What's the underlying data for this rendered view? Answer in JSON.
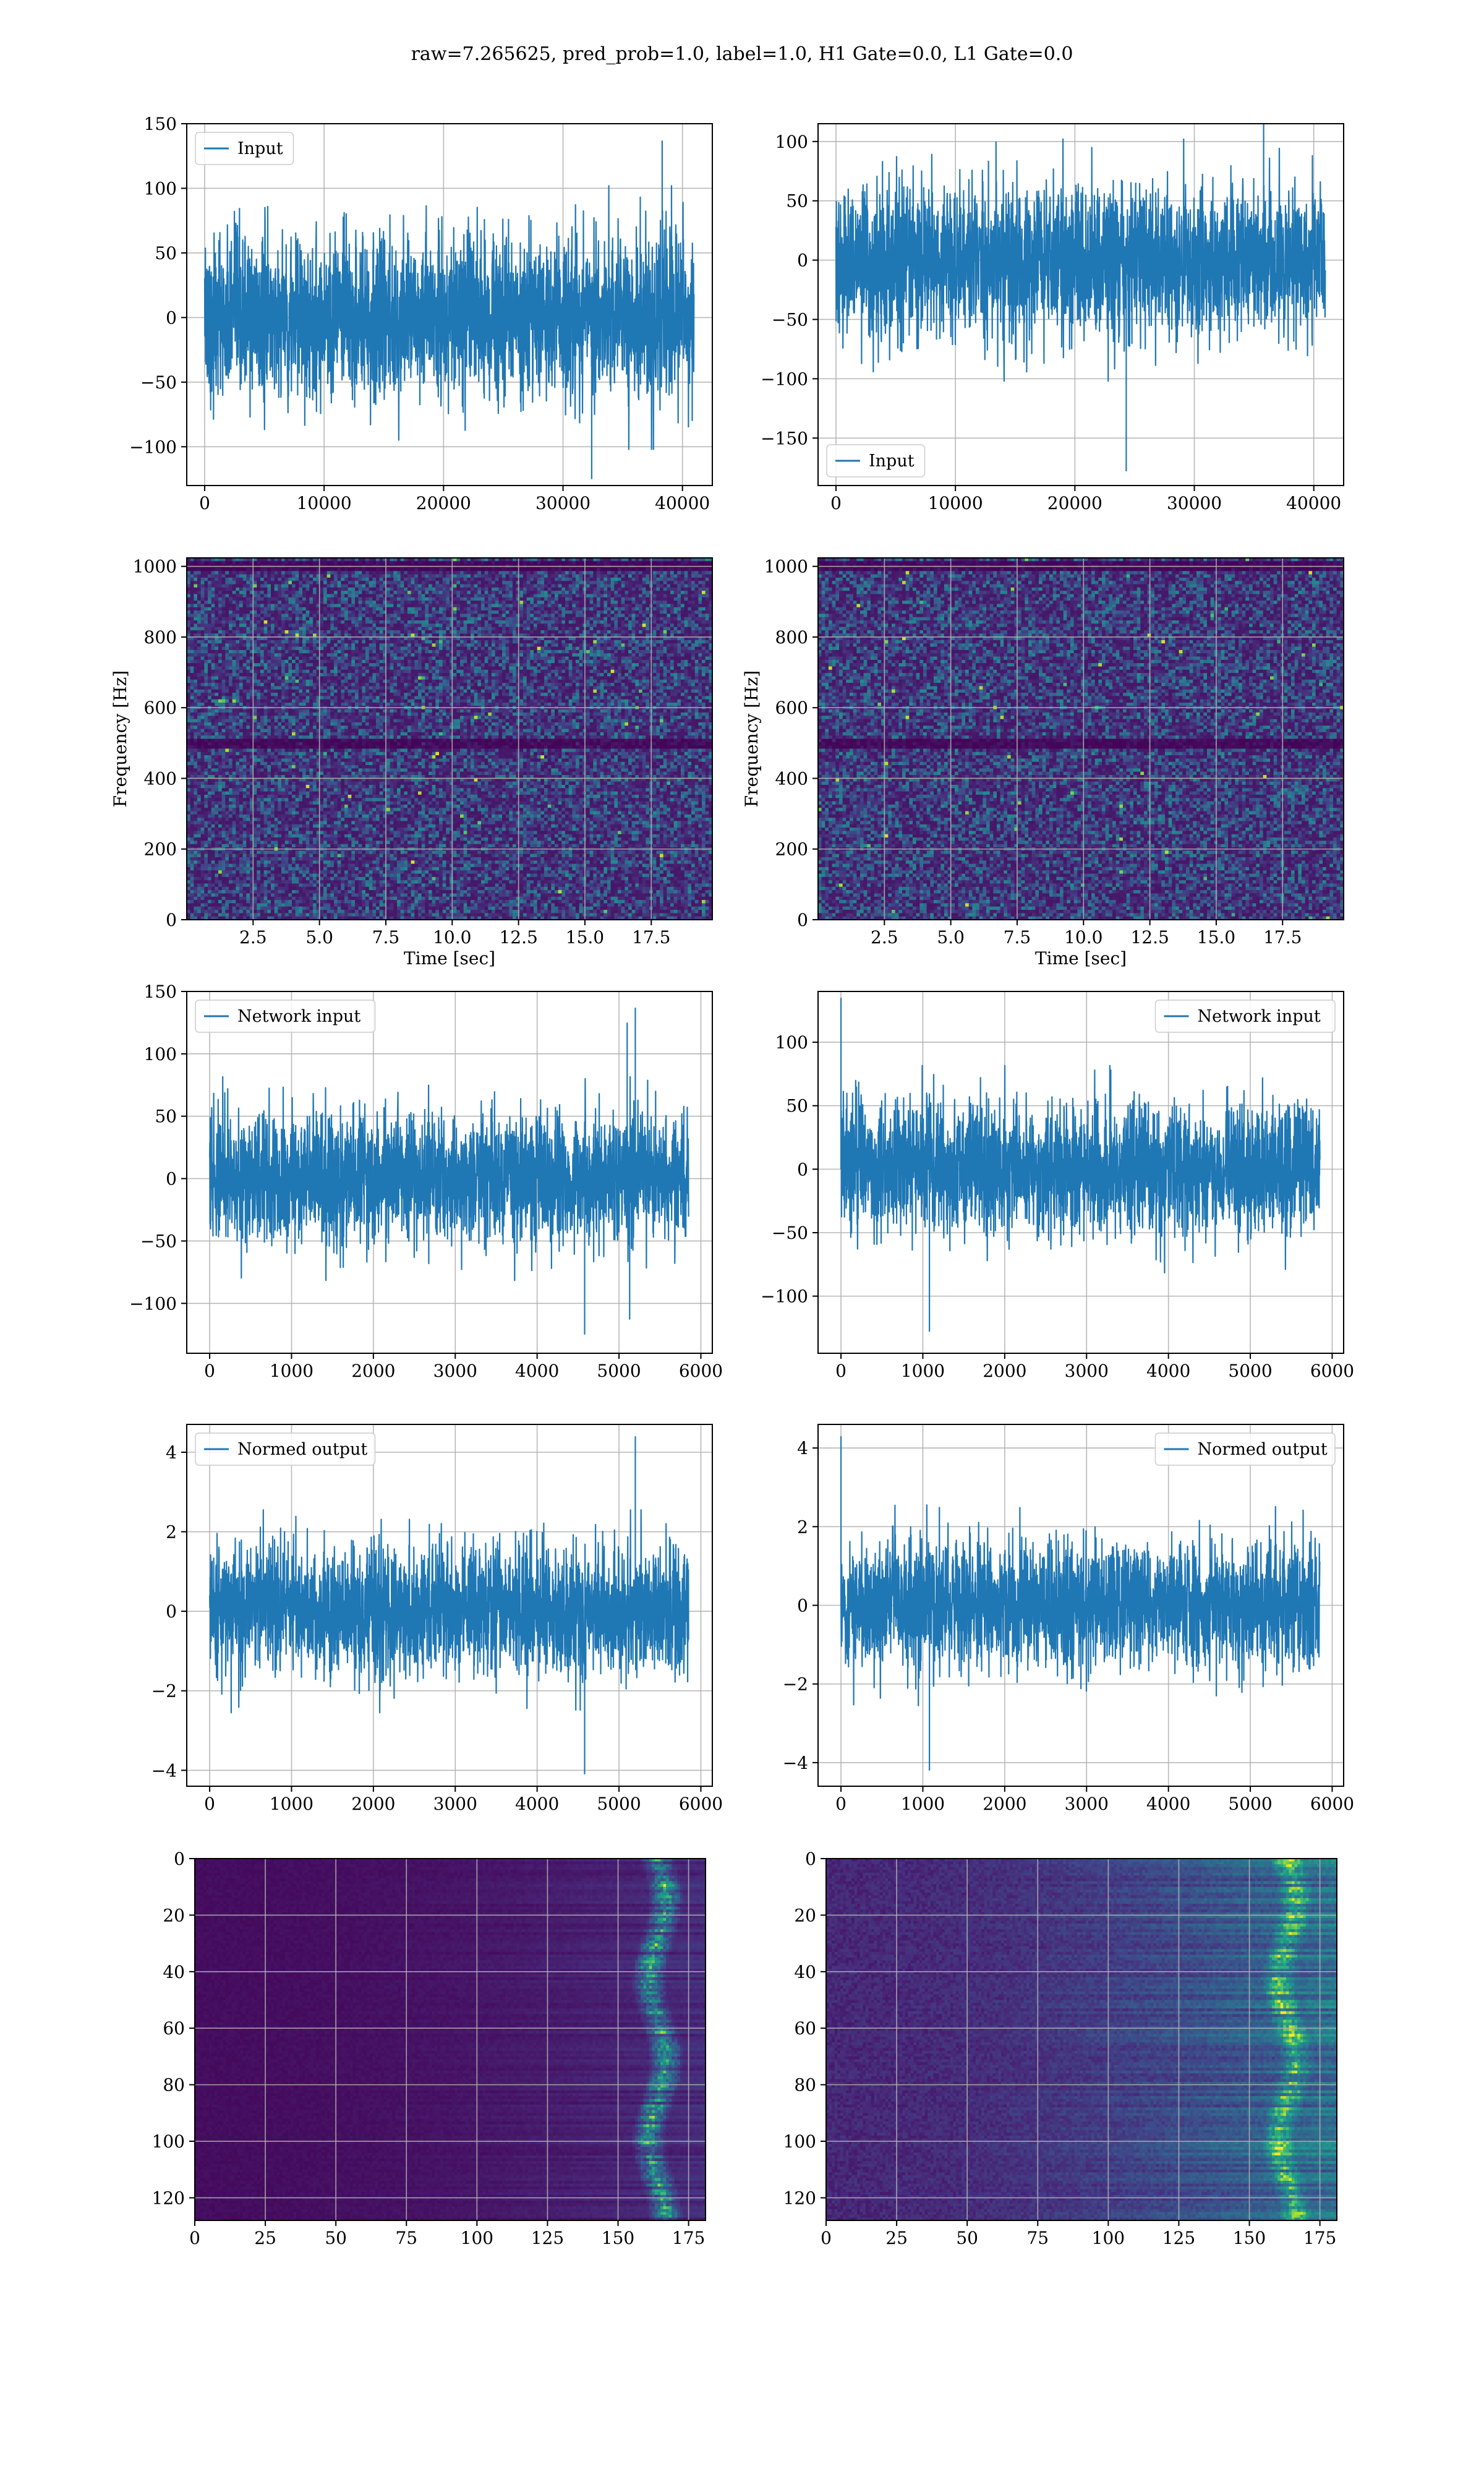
{
  "figure": {
    "suptitle": "raw=7.265625, pred_prob=1.0, label=1.0, H1 Gate=0.0, L1 Gate=0.0",
    "line_color": "#1f77b4",
    "grid_color": "#b0b0b0"
  },
  "chart_data": [
    {
      "id": "input-h1",
      "type": "line",
      "series": [
        {
          "name": "Input",
          "noise_std": 30,
          "x_max": 40960
        }
      ],
      "xlim": [
        -1500,
        42500
      ],
      "ylim": [
        -130,
        150
      ],
      "xticks": [
        0,
        10000,
        20000,
        30000,
        40000
      ],
      "yticks": [
        -100,
        -50,
        0,
        50,
        100,
        150
      ],
      "legend": "upper left",
      "grid": true,
      "annotations": [
        {
          "x": 32400,
          "y": -125
        },
        {
          "x": 38300,
          "y": 137
        }
      ]
    },
    {
      "id": "input-l1",
      "type": "line",
      "series": [
        {
          "name": "Input",
          "noise_std": 30,
          "x_max": 40960
        }
      ],
      "xlim": [
        -1500,
        42500
      ],
      "ylim": [
        -190,
        115
      ],
      "xticks": [
        0,
        10000,
        20000,
        30000,
        40000
      ],
      "yticks": [
        -150,
        -100,
        -50,
        0,
        50,
        100
      ],
      "legend": "lower left",
      "grid": true,
      "annotations": [
        {
          "x": 24300,
          "y": -178
        },
        {
          "x": 35800,
          "y": 125
        }
      ]
    },
    {
      "id": "spectrogram-h1",
      "type": "heatmap",
      "xlabel": "Time [sec]",
      "ylabel": "Frequency [Hz]",
      "xlim": [
        0,
        19.8
      ],
      "ylim": [
        0,
        1024
      ],
      "xticks": [
        2.5,
        5.0,
        7.5,
        10.0,
        12.5,
        15.0,
        17.5
      ],
      "yticks": [
        0,
        200,
        400,
        600,
        800,
        1000
      ],
      "colormap": "viridis",
      "grid": true,
      "dark_bands_hz": [
        500,
        1000
      ]
    },
    {
      "id": "spectrogram-l1",
      "type": "heatmap",
      "xlabel": "Time [sec]",
      "ylabel": "Frequency [Hz]",
      "xlim": [
        0,
        19.8
      ],
      "ylim": [
        0,
        1024
      ],
      "xticks": [
        2.5,
        5.0,
        7.5,
        10.0,
        12.5,
        15.0,
        17.5
      ],
      "yticks": [
        0,
        200,
        400,
        600,
        800,
        1000
      ],
      "colormap": "viridis",
      "grid": true,
      "dark_bands_hz": [
        500,
        1000
      ]
    },
    {
      "id": "network-input-h1",
      "type": "line",
      "series": [
        {
          "name": "Network input",
          "noise_std": 24,
          "x_max": 5850
        }
      ],
      "xlim": [
        -280,
        6140
      ],
      "ylim": [
        -140,
        150
      ],
      "xticks": [
        0,
        1000,
        2000,
        3000,
        4000,
        5000,
        6000
      ],
      "yticks": [
        -100,
        -50,
        0,
        50,
        100,
        150
      ],
      "legend": "upper left",
      "grid": true,
      "annotations": [
        {
          "x": 5200,
          "y": 137
        },
        {
          "x": 5100,
          "y": 125
        },
        {
          "x": 4580,
          "y": -125
        },
        {
          "x": 5130,
          "y": -113
        }
      ]
    },
    {
      "id": "network-input-l1",
      "type": "line",
      "series": [
        {
          "name": "Network input",
          "noise_std": 24,
          "x_max": 5850
        }
      ],
      "xlim": [
        -280,
        6140
      ],
      "ylim": [
        -145,
        140
      ],
      "xticks": [
        0,
        1000,
        2000,
        3000,
        4000,
        5000,
        6000
      ],
      "yticks": [
        -100,
        -50,
        0,
        50,
        100
      ],
      "legend": "upper right",
      "grid": true,
      "annotations": [
        {
          "x": 0,
          "y": 135
        },
        {
          "x": 1080,
          "y": -128
        }
      ]
    },
    {
      "id": "normed-output-h1",
      "type": "line",
      "series": [
        {
          "name": "Normed output",
          "noise_std": 0.75,
          "x_max": 5850
        }
      ],
      "xlim": [
        -280,
        6140
      ],
      "ylim": [
        -4.4,
        4.7
      ],
      "xticks": [
        0,
        1000,
        2000,
        3000,
        4000,
        5000,
        6000
      ],
      "yticks": [
        -4,
        -2,
        0,
        2,
        4
      ],
      "legend": "upper left",
      "grid": true,
      "annotations": [
        {
          "x": 5200,
          "y": 4.4
        },
        {
          "x": 4580,
          "y": -4.1
        }
      ]
    },
    {
      "id": "normed-output-l1",
      "type": "line",
      "series": [
        {
          "name": "Normed output",
          "noise_std": 0.75,
          "x_max": 5850
        }
      ],
      "xlim": [
        -280,
        6140
      ],
      "ylim": [
        -4.6,
        4.6
      ],
      "xticks": [
        0,
        1000,
        2000,
        3000,
        4000,
        5000,
        6000
      ],
      "yticks": [
        -4,
        -2,
        0,
        2,
        4
      ],
      "legend": "upper right",
      "grid": true,
      "annotations": [
        {
          "x": 0,
          "y": 4.3
        },
        {
          "x": 1080,
          "y": -4.2
        }
      ]
    },
    {
      "id": "features-h1",
      "type": "heatmap",
      "xlim": [
        0,
        181
      ],
      "ylim": [
        0,
        128
      ],
      "xticks": [
        0,
        25,
        50,
        75,
        100,
        125,
        150,
        175
      ],
      "yticks": [
        0,
        20,
        40,
        60,
        80,
        100,
        120
      ],
      "colormap": "viridis",
      "grid": true,
      "hot_columns": [
        155,
        172
      ],
      "background_level": 0.05
    },
    {
      "id": "features-l1",
      "type": "heatmap",
      "xlim": [
        0,
        181
      ],
      "ylim": [
        0,
        128
      ],
      "xticks": [
        0,
        25,
        50,
        75,
        100,
        125,
        150,
        175
      ],
      "yticks": [
        0,
        20,
        40,
        60,
        80,
        100,
        120
      ],
      "colormap": "viridis",
      "grid": true,
      "hot_columns": [
        150,
        176
      ],
      "background_level": 0.16
    }
  ]
}
